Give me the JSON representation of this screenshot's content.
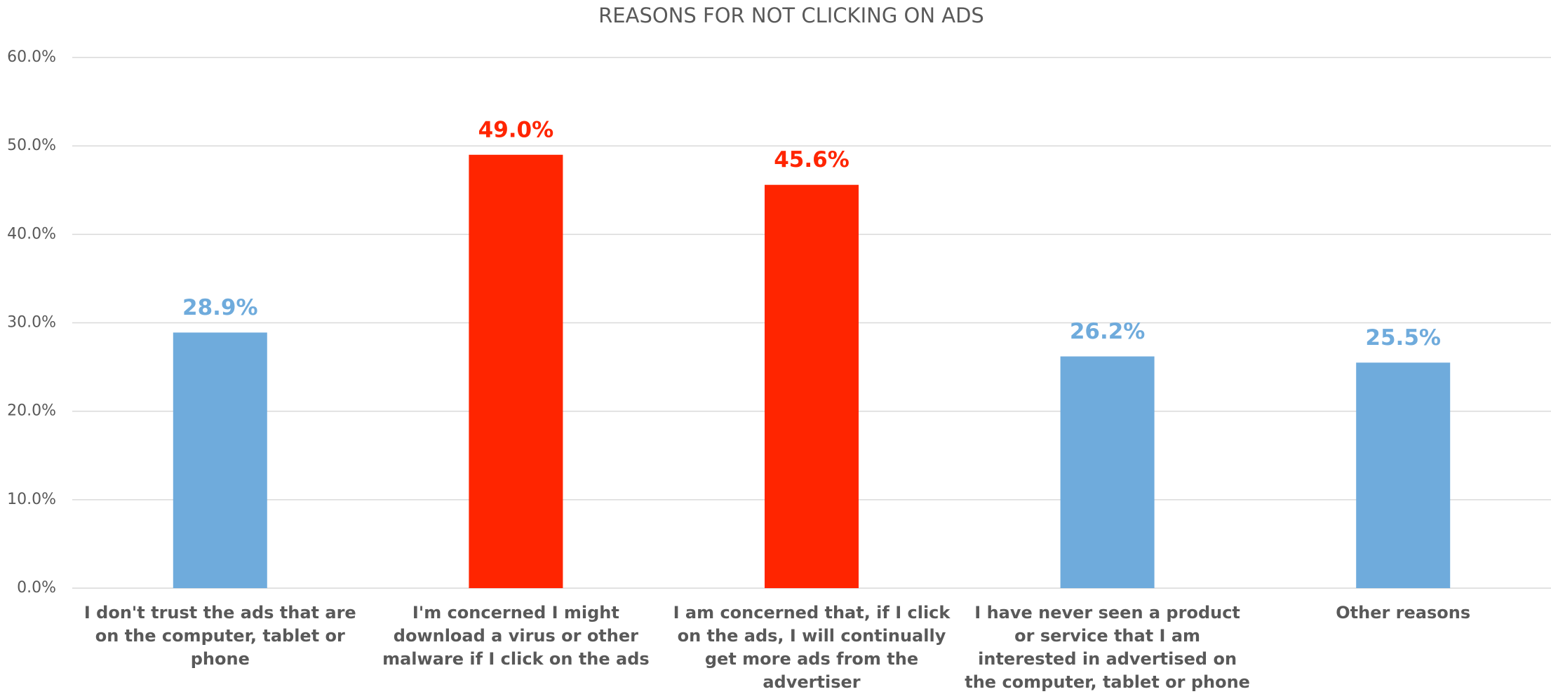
{
  "chart_data": {
    "type": "bar",
    "title": "REASONS FOR NOT CLICKING ON ADS",
    "categories": [
      "I don't trust the ads that are on the computer, tablet or phone",
      "I'm concerned I might download a virus or other malware if I click on the ads",
      "I am concerned that, if I click on the ads, I will continually get more ads from the advertiser",
      "I have never seen a product or service that I am interested in advertised on the computer, tablet or phone",
      "Other reasons"
    ],
    "values": [
      28.9,
      49.0,
      45.6,
      26.2,
      25.5
    ],
    "value_labels": [
      "28.9%",
      "49.0%",
      "45.6%",
      "26.2%",
      "25.5%"
    ],
    "colors": [
      "#6fabdc",
      "#ff2500",
      "#ff2500",
      "#6fabdc",
      "#6fabdc"
    ],
    "ylim": [
      0,
      60
    ],
    "yticks": [
      {
        "value": 0,
        "label": "0.0%"
      },
      {
        "value": 10,
        "label": "10.0%"
      },
      {
        "value": 20,
        "label": "20.0%"
      },
      {
        "value": 30,
        "label": "30.0%"
      },
      {
        "value": 40,
        "label": "40.0%"
      },
      {
        "value": 50,
        "label": "50.0%"
      },
      {
        "value": 60,
        "label": "60.0%"
      }
    ],
    "grid": true
  }
}
